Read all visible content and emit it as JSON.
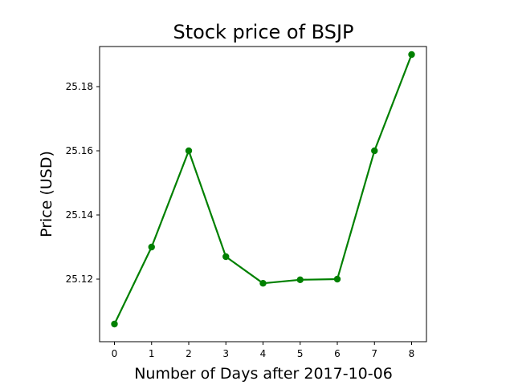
{
  "chart_data": {
    "type": "line",
    "title": "Stock price of BSJP",
    "xlabel": "Number of Days after 2017-10-06",
    "ylabel": "Price (USD)",
    "x": [
      0,
      1,
      2,
      3,
      4,
      5,
      6,
      7,
      8
    ],
    "x_ticks": [
      "0",
      "1",
      "2",
      "3",
      "4",
      "5",
      "6",
      "7",
      "8"
    ],
    "y_ticks": [
      "25.12",
      "25.14",
      "25.16",
      "25.18"
    ],
    "xlim": [
      -0.4,
      8.4
    ],
    "ylim": [
      25.1005,
      25.1925
    ],
    "series": [
      {
        "values": [
          25.106,
          25.13,
          25.16,
          25.127,
          25.1187,
          25.1198,
          25.12,
          25.16,
          25.19
        ],
        "color": "#008000",
        "marker": "circle"
      }
    ],
    "grid": false,
    "legend": "none"
  }
}
